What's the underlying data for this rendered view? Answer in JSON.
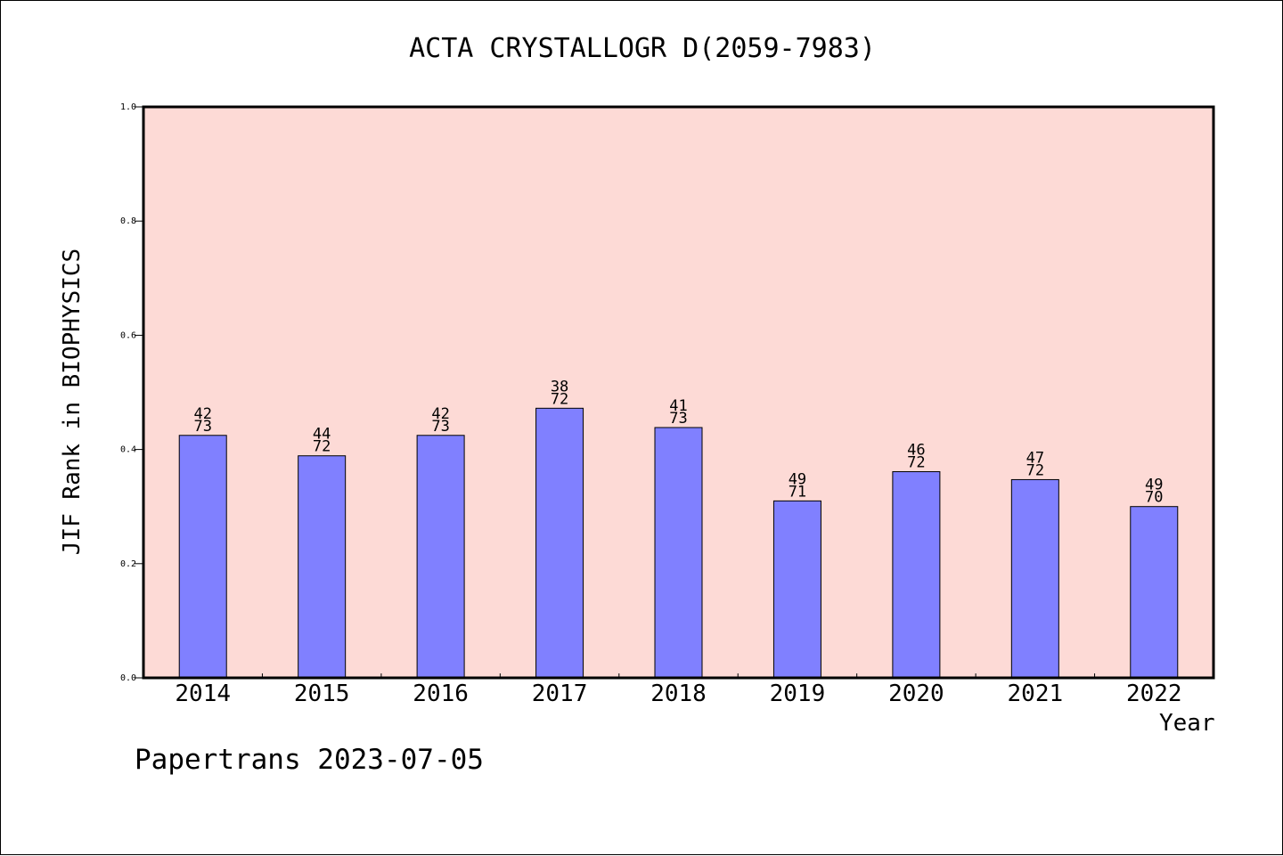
{
  "chart_data": {
    "type": "bar",
    "title": "ACTA CRYSTALLOGR D(2059-7983)",
    "xlabel": "Year",
    "ylabel": "JIF Rank in BIOPHYSICS",
    "ylim": [
      0,
      1.0
    ],
    "yticks": [
      "0.0",
      "0.2",
      "0.4",
      "0.6",
      "0.8",
      "1.0"
    ],
    "ytick_values": [
      0.0,
      0.2,
      0.4,
      0.6,
      0.8,
      1.0
    ],
    "categories": [
      "2014",
      "2015",
      "2016",
      "2017",
      "2018",
      "2019",
      "2020",
      "2021",
      "2022"
    ],
    "values": [
      0.4247,
      0.3889,
      0.4247,
      0.4722,
      0.4384,
      0.3099,
      0.3611,
      0.3472,
      0.3
    ],
    "ranks": [
      "42",
      "44",
      "42",
      "38",
      "41",
      "49",
      "46",
      "47",
      "49"
    ],
    "totals": [
      "73",
      "72",
      "73",
      "72",
      "73",
      "71",
      "72",
      "72",
      "70"
    ],
    "grid": false,
    "colors": {
      "plot_background": "#fddad6",
      "bar_fill": "#8080ff",
      "bar_stroke": "#000000",
      "axis": "#000000"
    }
  },
  "footer": "Papertrans 2023-07-05"
}
